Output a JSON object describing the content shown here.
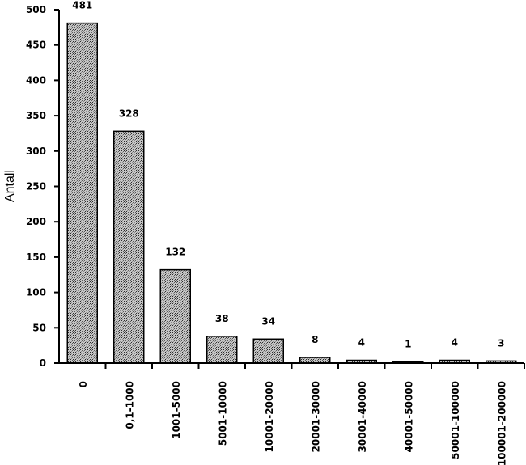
{
  "chart_data": {
    "type": "bar",
    "title": "",
    "xlabel": "",
    "ylabel": "Antall",
    "ylim": [
      0,
      500
    ],
    "yticks": [
      0,
      50,
      100,
      150,
      200,
      250,
      300,
      350,
      400,
      450,
      500
    ],
    "grid": false,
    "legend": "none",
    "bar_fill": "stippled grey",
    "categories": [
      "0",
      "0,1-1000",
      "1001-5000",
      "5001-10000",
      "10001-20000",
      "20001-30000",
      "30001-40000",
      "40001-50000",
      "50001-100000",
      "100001-200000"
    ],
    "values": [
      481,
      328,
      132,
      38,
      34,
      8,
      4,
      1,
      4,
      3
    ],
    "data_labels": [
      "481",
      "328",
      "132",
      "38",
      "34",
      "8",
      "4",
      "1",
      "4",
      "3"
    ]
  }
}
